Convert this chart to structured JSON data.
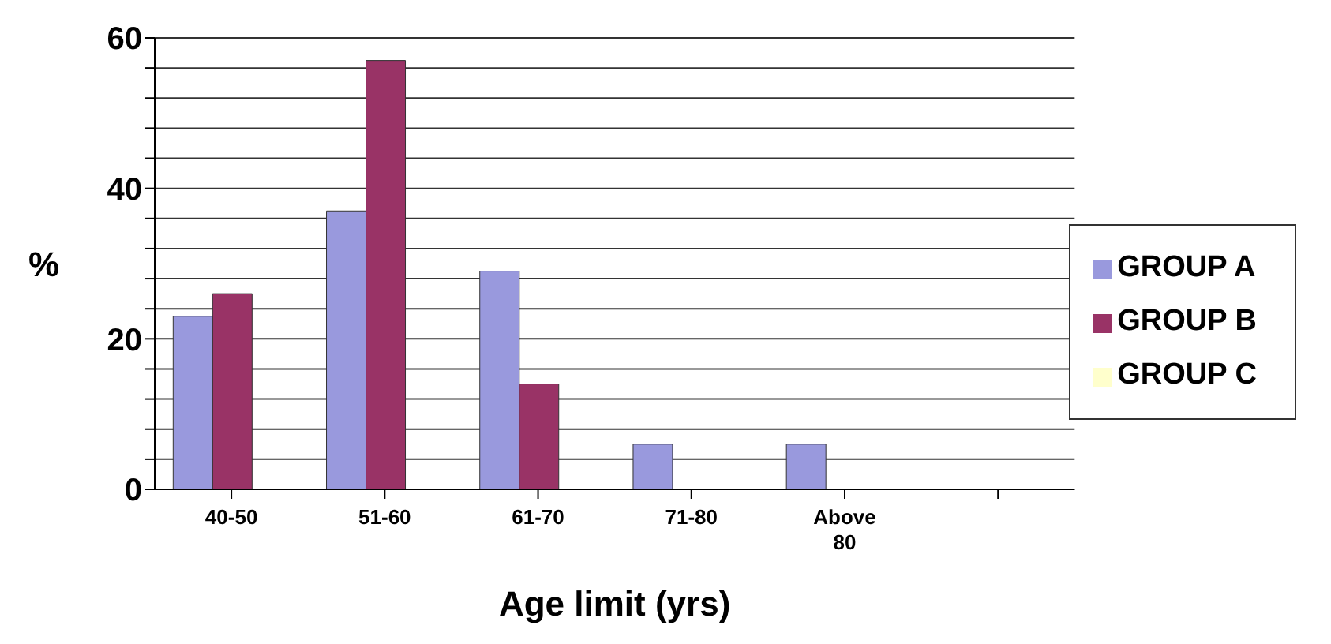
{
  "chart_data": {
    "type": "bar",
    "xlabel": "Age limit (yrs)",
    "ylabel": "%",
    "categories": [
      "40-50",
      "51-60",
      "61-70",
      "71-80",
      "Above 80",
      null
    ],
    "series": [
      {
        "name": "GROUP A",
        "color": "#9999dd",
        "values": [
          23,
          37,
          29,
          6,
          6,
          null
        ]
      },
      {
        "name": "GROUP B",
        "color": "#993366",
        "values": [
          26,
          57,
          14,
          0,
          0,
          null
        ]
      },
      {
        "name": "GROUP C",
        "color": "#ffffcc",
        "values": [
          0,
          0,
          0,
          0,
          0,
          null
        ]
      }
    ],
    "ylim": [
      0,
      60
    ],
    "yticks": [
      0,
      {
        "value": 4,
        "label": null
      },
      {
        "value": 8,
        "label": null
      },
      {
        "value": 12,
        "label": null
      },
      {
        "value": 16,
        "label": null
      },
      20,
      {
        "value": 24,
        "label": null
      },
      {
        "value": 28,
        "label": null
      },
      {
        "value": 32,
        "label": null
      },
      {
        "value": 36,
        "label": null
      },
      40,
      {
        "value": 44,
        "label": null
      },
      {
        "value": 48,
        "label": null
      },
      {
        "value": 52,
        "label": null
      },
      {
        "value": 56,
        "label": null
      },
      60
    ],
    "grid": "y",
    "legend": "right"
  }
}
